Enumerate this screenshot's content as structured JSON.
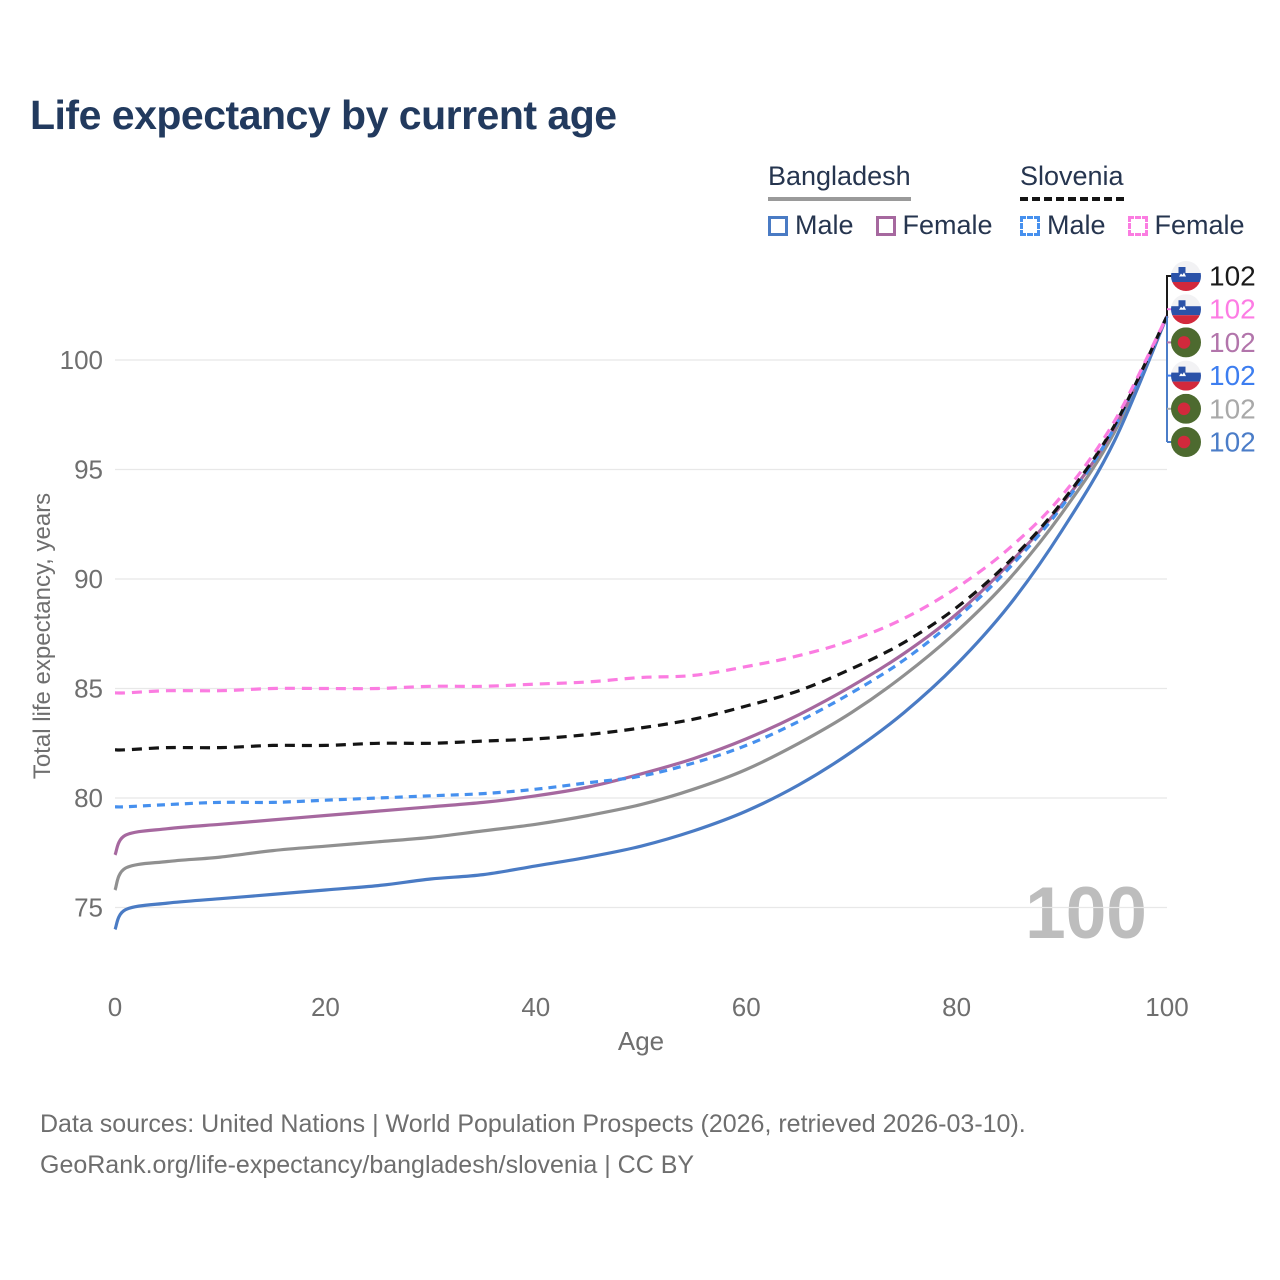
{
  "title": "Life expectancy by current age",
  "legend": {
    "groups": [
      {
        "country": "Bangladesh",
        "line_style": "solid",
        "line_color": "#9a9a9a",
        "items": [
          {
            "label": "Male",
            "color": "#4a7bc4",
            "dash": false
          },
          {
            "label": "Female",
            "color": "#a6689f",
            "dash": false
          }
        ]
      },
      {
        "country": "Slovenia",
        "line_style": "dashed",
        "line_color": "#141414",
        "items": [
          {
            "label": "Male",
            "color": "#4690ee",
            "dash": true
          },
          {
            "label": "Female",
            "color": "#fb7ce1",
            "dash": true
          }
        ]
      }
    ]
  },
  "chart_data": {
    "type": "line",
    "title": "Life expectancy by current age",
    "xlabel": "Age",
    "ylabel": "Total life expectancy, years",
    "xlim": [
      0,
      100
    ],
    "ylim": [
      73.5,
      103
    ],
    "x_ticks": [
      0,
      20,
      40,
      60,
      80,
      100
    ],
    "y_ticks": [
      75,
      80,
      85,
      90,
      95,
      100
    ],
    "grid": "horizontal",
    "watermark": "100",
    "x": [
      0,
      1,
      5,
      10,
      15,
      20,
      25,
      30,
      35,
      40,
      45,
      50,
      55,
      60,
      65,
      70,
      75,
      80,
      85,
      90,
      95,
      100
    ],
    "series": [
      {
        "name": "Bangladesh Both sexes",
        "country": "Bangladesh",
        "sex": "Both",
        "color": "#909090",
        "style": "solid",
        "values": [
          75.8,
          76.8,
          77.1,
          77.3,
          77.6,
          77.8,
          78.0,
          78.2,
          78.5,
          78.8,
          79.2,
          79.7,
          80.4,
          81.3,
          82.5,
          83.9,
          85.6,
          87.6,
          90.0,
          93.0,
          96.7,
          102
        ]
      },
      {
        "name": "Bangladesh Male",
        "country": "Bangladesh",
        "sex": "Male",
        "color": "#4a7bc4",
        "style": "solid",
        "values": [
          74.0,
          74.9,
          75.2,
          75.4,
          75.6,
          75.8,
          76.0,
          76.3,
          76.5,
          76.9,
          77.3,
          77.8,
          78.5,
          79.4,
          80.6,
          82.1,
          83.9,
          86.1,
          88.8,
          92.2,
          96.3,
          102
        ]
      },
      {
        "name": "Bangladesh Female",
        "country": "Bangladesh",
        "sex": "Female",
        "color": "#a6689f",
        "style": "solid",
        "values": [
          77.4,
          78.3,
          78.6,
          78.8,
          79.0,
          79.2,
          79.4,
          79.6,
          79.8,
          80.1,
          80.5,
          81.1,
          81.8,
          82.7,
          83.8,
          85.1,
          86.6,
          88.4,
          90.7,
          93.4,
          96.9,
          102
        ]
      },
      {
        "name": "Slovenia Male",
        "country": "Slovenia",
        "sex": "Male",
        "color": "#4690ee",
        "style": "dashed",
        "values": [
          79.6,
          79.6,
          79.7,
          79.8,
          79.8,
          79.9,
          80.0,
          80.1,
          80.2,
          80.4,
          80.7,
          81.0,
          81.6,
          82.4,
          83.5,
          84.8,
          86.3,
          88.2,
          90.5,
          93.3,
          96.9,
          102
        ]
      },
      {
        "name": "Slovenia Both sexes",
        "country": "Slovenia",
        "sex": "Both",
        "color": "#141414",
        "style": "dashed",
        "values": [
          82.2,
          82.2,
          82.3,
          82.3,
          82.4,
          82.4,
          82.5,
          82.5,
          82.6,
          82.7,
          82.9,
          83.2,
          83.6,
          84.2,
          84.9,
          85.9,
          87.1,
          88.7,
          90.8,
          93.5,
          97.0,
          102
        ]
      },
      {
        "name": "Slovenia Female",
        "country": "Slovenia",
        "sex": "Female",
        "color": "#fb7ce1",
        "style": "dashed",
        "values": [
          84.8,
          84.8,
          84.9,
          84.9,
          85.0,
          85.0,
          85.0,
          85.1,
          85.1,
          85.2,
          85.3,
          85.5,
          85.6,
          86.0,
          86.5,
          87.2,
          88.2,
          89.6,
          91.4,
          93.8,
          97.2,
          102
        ]
      }
    ],
    "end_labels": [
      {
        "flag": "slovenia",
        "series": "Slovenia Both sexes",
        "value": "102",
        "color": "#1a1a1a"
      },
      {
        "flag": "slovenia",
        "series": "Slovenia Female",
        "value": "102",
        "color": "#fd7ce4"
      },
      {
        "flag": "bangladesh",
        "series": "Bangladesh Female",
        "value": "102",
        "color": "#b275ab"
      },
      {
        "flag": "slovenia",
        "series": "Slovenia Male",
        "value": "102",
        "color": "#3d7ef0"
      },
      {
        "flag": "bangladesh",
        "series": "Bangladesh Both sexes",
        "value": "102",
        "color": "#a9a9a9"
      },
      {
        "flag": "bangladesh",
        "series": "Bangladesh Male",
        "value": "102",
        "color": "#4b7dc8"
      }
    ]
  },
  "footer": {
    "line1": "Data sources: United Nations | World Population Prospects (2026, retrieved 2026-03-10).",
    "line2": "GeoRank.org/life-expectancy/bangladesh/slovenia | CC BY"
  },
  "colors": {
    "title_text": "#223a5e",
    "legend_text": "#26354f",
    "axis_text": "#6f6f6f",
    "gridline": "#e8e8e8",
    "watermark": "#bdbdbd",
    "footer_text": "#6e6e6e"
  }
}
